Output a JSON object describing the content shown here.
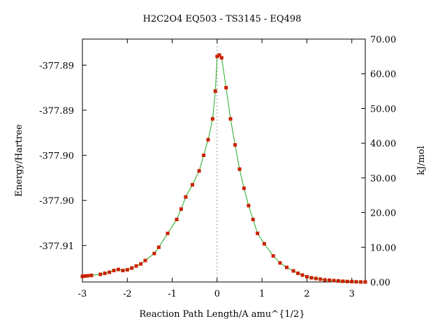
{
  "chart_data": {
    "type": "line",
    "title": "H2C2O4    EQ503 - TS3145 - EQ498",
    "xlabel": "Reaction Path Length/A amu^{1/2}",
    "ylabel_left": "Energy/Hartree",
    "ylabel_right": "kJ/mol",
    "xlim": [
      -3.0,
      3.3
    ],
    "ylim_right": [
      0,
      70
    ],
    "x_ticks": [
      -3,
      -2,
      -1,
      0,
      1,
      2,
      3
    ],
    "left_ticks": [
      {
        "label": "-377.89",
        "kj": 62.5
      },
      {
        "label": "-377.89",
        "kj": 49.5
      },
      {
        "label": "-377.90",
        "kj": 36.5
      },
      {
        "label": "-377.90",
        "kj": 23.5
      },
      {
        "label": "-377.91",
        "kj": 10.5
      }
    ],
    "right_ticks": [
      "0.00",
      "10.00",
      "20.00",
      "30.00",
      "40.00",
      "50.00",
      "60.00",
      "70.00"
    ],
    "grid": false,
    "ts_marker_x": 0,
    "line_color": "#22aa22",
    "marker_color": "#cc2200",
    "ts_line_color": "#999999",
    "series": [
      {
        "points": [
          [
            -3.0,
            1.6
          ],
          [
            -2.94,
            1.7
          ],
          [
            -2.88,
            1.8
          ],
          [
            -2.8,
            1.9
          ],
          [
            -2.6,
            2.2
          ],
          [
            -2.5,
            2.5
          ],
          [
            -2.4,
            2.8
          ],
          [
            -2.3,
            3.3
          ],
          [
            -2.2,
            3.6
          ],
          [
            -2.1,
            3.3
          ],
          [
            -2.0,
            3.5
          ],
          [
            -1.9,
            4.0
          ],
          [
            -1.8,
            4.6
          ],
          [
            -1.7,
            5.2
          ],
          [
            -1.6,
            6.2
          ],
          [
            -1.4,
            8.2
          ],
          [
            -1.3,
            10.0
          ],
          [
            -1.1,
            14.0
          ],
          [
            -0.9,
            18.0
          ],
          [
            -0.8,
            21.0
          ],
          [
            -0.7,
            24.5
          ],
          [
            -0.55,
            28.0
          ],
          [
            -0.4,
            32.0
          ],
          [
            -0.3,
            36.5
          ],
          [
            -0.2,
            41.0
          ],
          [
            -0.1,
            47.0
          ],
          [
            -0.04,
            55.0
          ],
          [
            0.0,
            65.0
          ],
          [
            0.05,
            65.4
          ],
          [
            0.1,
            64.6
          ],
          [
            0.2,
            56.0
          ],
          [
            0.3,
            47.0
          ],
          [
            0.4,
            39.5
          ],
          [
            0.5,
            32.5
          ],
          [
            0.6,
            27.0
          ],
          [
            0.7,
            22.0
          ],
          [
            0.8,
            18.0
          ],
          [
            0.9,
            14.0
          ],
          [
            1.05,
            11.0
          ],
          [
            1.25,
            7.5
          ],
          [
            1.4,
            5.5
          ],
          [
            1.55,
            4.2
          ],
          [
            1.7,
            3.2
          ],
          [
            1.8,
            2.5
          ],
          [
            1.9,
            2.0
          ],
          [
            2.0,
            1.5
          ],
          [
            2.1,
            1.2
          ],
          [
            2.2,
            1.0
          ],
          [
            2.3,
            0.8
          ],
          [
            2.4,
            0.6
          ],
          [
            2.5,
            0.5
          ],
          [
            2.6,
            0.4
          ],
          [
            2.7,
            0.3
          ],
          [
            2.8,
            0.2
          ],
          [
            2.9,
            0.15
          ],
          [
            3.0,
            0.1
          ],
          [
            3.1,
            0.05
          ],
          [
            3.2,
            0.0
          ],
          [
            3.3,
            0.0
          ]
        ]
      }
    ]
  }
}
